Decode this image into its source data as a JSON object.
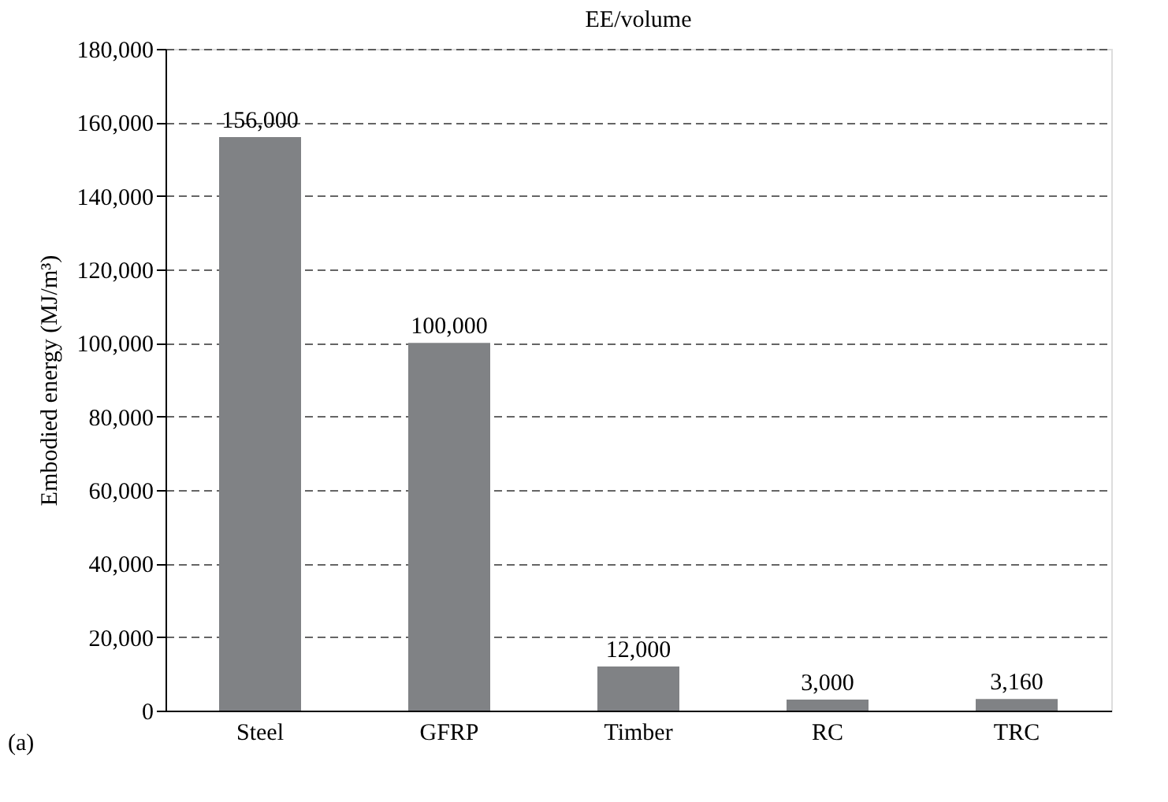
{
  "chart_data": {
    "type": "bar",
    "title": "EE/volume",
    "ylabel": "Embodied energy (MJ/m³)",
    "categories": [
      "Steel",
      "GFRP",
      "Timber",
      "RC",
      "TRC"
    ],
    "values": [
      156000,
      100000,
      12000,
      3000,
      3160
    ],
    "color": "#808285",
    "value_labels": [
      "156,000",
      "100,000",
      "12,000",
      "3,000",
      "3,160"
    ],
    "ylim": [
      0,
      180000
    ],
    "yticks": [
      {
        "value": 0,
        "label": "0"
      },
      {
        "value": 20000,
        "label": "20,000"
      },
      {
        "value": 40000,
        "label": "40,000"
      },
      {
        "value": 60000,
        "label": "60,000"
      },
      {
        "value": 80000,
        "label": "80,000"
      },
      {
        "value": 100000,
        "label": "100,000"
      },
      {
        "value": 120000,
        "label": "120,000"
      },
      {
        "value": 140000,
        "label": "140,000"
      },
      {
        "value": 160000,
        "label": "160,000"
      },
      {
        "value": 180000,
        "label": "180,000"
      }
    ],
    "grid": "y",
    "annotations": [
      "(a)"
    ]
  }
}
